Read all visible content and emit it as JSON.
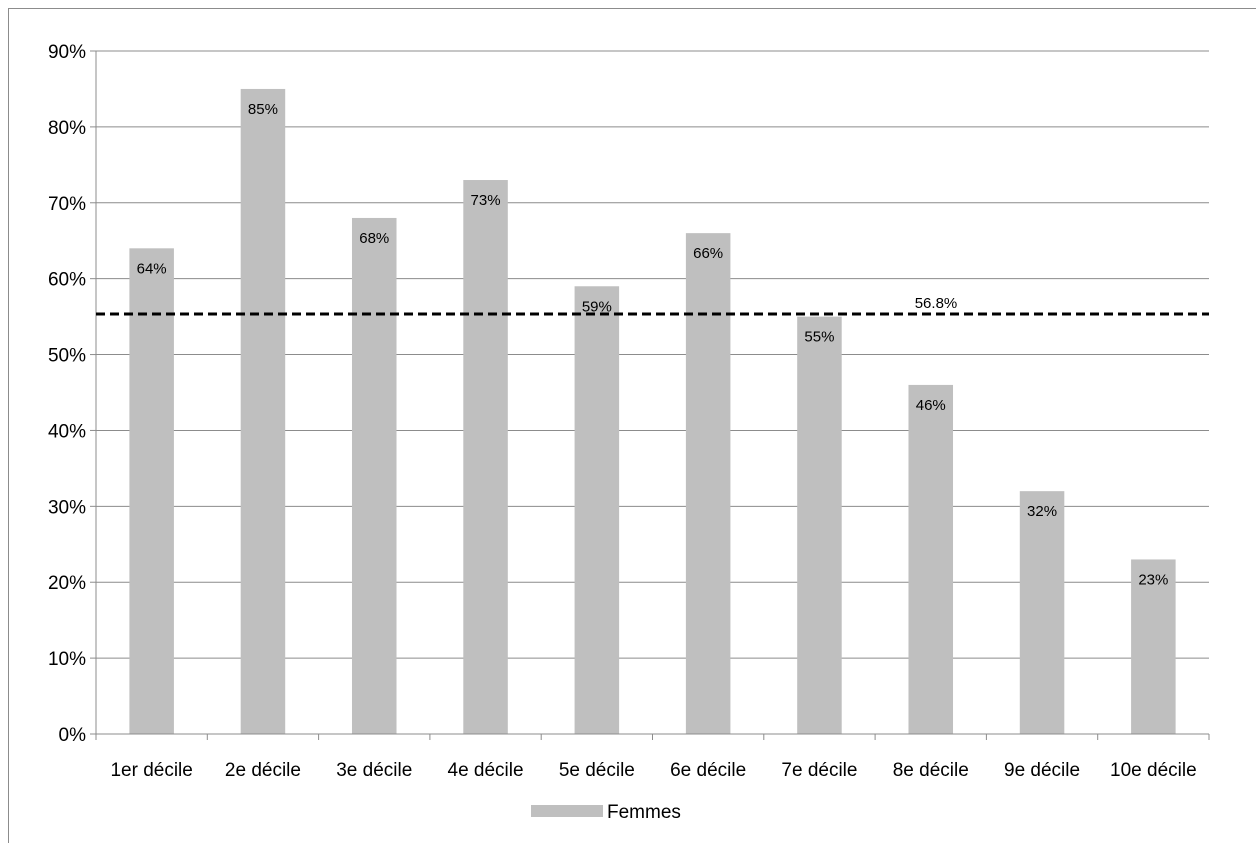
{
  "chart_data": {
    "type": "bar",
    "title": "",
    "xlabel": "",
    "ylabel": "",
    "categories": [
      "1er décile",
      "2e décile",
      "3e décile",
      "4e décile",
      "5e décile",
      "6e décile",
      "7e décile",
      "8e décile",
      "9e décile",
      "10e décile"
    ],
    "series": [
      {
        "name": "Femmes",
        "values": [
          64,
          85,
          68,
          73,
          59,
          66,
          55,
          46,
          32,
          23
        ],
        "labels": [
          "64%",
          "85%",
          "68%",
          "73%",
          "59%",
          "66%",
          "55%",
          "46%",
          "32%",
          "23%"
        ],
        "color": "#bfbfbf"
      }
    ],
    "ylim": [
      0,
      90
    ],
    "yticks": [
      0,
      10,
      20,
      30,
      40,
      50,
      60,
      70,
      80,
      90
    ],
    "ytick_labels": [
      "0%",
      "10%",
      "20%",
      "30%",
      "40%",
      "50%",
      "60%",
      "70%",
      "80%",
      "90%"
    ],
    "grid": true,
    "reference_line": {
      "value": 56.8,
      "label": "56.8%",
      "style": "dashed",
      "color": "#000000"
    },
    "legend": {
      "placement": "bottom",
      "entries": [
        "Femmes"
      ]
    }
  }
}
